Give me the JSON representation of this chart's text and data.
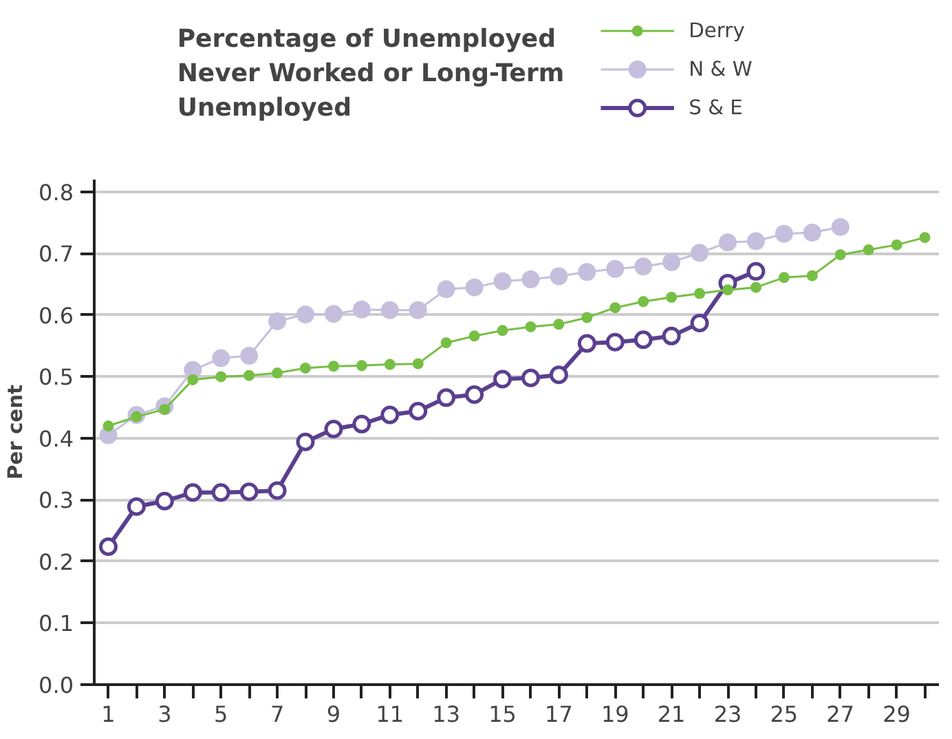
{
  "chart_data": {
    "type": "line",
    "title": "Percentage of Unemployed Never Worked or Long-Term Unemployed",
    "ylabel": "Per cent",
    "x": [
      1,
      2,
      3,
      4,
      5,
      6,
      7,
      8,
      9,
      10,
      11,
      12,
      13,
      14,
      15,
      16,
      17,
      18,
      19,
      20,
      21,
      22,
      23,
      24,
      25,
      26,
      27,
      28,
      29,
      30
    ],
    "xlim": [
      0.5,
      30.5
    ],
    "xticks": [
      1,
      {
        "value": 2,
        "label": null
      },
      3,
      {
        "value": 4,
        "label": null
      },
      5,
      {
        "value": 6,
        "label": null
      },
      7,
      {
        "value": 8,
        "label": null
      },
      9,
      {
        "value": 10,
        "label": null
      },
      11,
      {
        "value": 12,
        "label": null
      },
      13,
      {
        "value": 14,
        "label": null
      },
      15,
      {
        "value": 16,
        "label": null
      },
      17,
      {
        "value": 18,
        "label": null
      },
      19,
      {
        "value": 20,
        "label": null
      },
      21,
      {
        "value": 22,
        "label": null
      },
      23,
      {
        "value": 24,
        "label": null
      },
      25,
      {
        "value": 26,
        "label": null
      },
      27,
      {
        "value": 28,
        "label": null
      },
      29,
      {
        "value": 30,
        "label": null
      }
    ],
    "ylim": [
      0,
      0.82
    ],
    "yticks": [
      {
        "value": 0,
        "label": "0.0"
      },
      0.1,
      0.2,
      0.3,
      0.4,
      0.5,
      0.6,
      0.7,
      0.8
    ],
    "grid": "y",
    "legend": "top right",
    "marker": "circle",
    "line_style": "solid",
    "series": [
      {
        "name": "Derry",
        "color": "#76bf44",
        "values": [
          0.42,
          0.435,
          0.447,
          0.495,
          0.5,
          0.502,
          0.506,
          0.514,
          0.517,
          0.518,
          0.52,
          0.521,
          0.555,
          0.566,
          0.575,
          0.581,
          0.585,
          0.596,
          0.612,
          0.622,
          0.629,
          0.635,
          0.641,
          0.645,
          0.661,
          0.664,
          0.698,
          0.706,
          0.714,
          0.726
        ]
      },
      {
        "name": "N & W",
        "color": "#c5bfdd",
        "values": [
          0.405,
          0.438,
          0.452,
          0.511,
          0.53,
          0.534,
          0.59,
          0.601,
          0.602,
          0.609,
          0.608,
          0.608,
          0.642,
          0.645,
          0.655,
          0.658,
          0.663,
          0.67,
          0.675,
          0.679,
          0.686,
          0.701,
          0.718,
          0.72,
          0.732,
          0.734,
          0.743,
          null,
          null,
          null
        ]
      },
      {
        "name": "S & E",
        "color": "#5a3f8f",
        "marker": "open_circle",
        "values": [
          0.224,
          0.289,
          0.298,
          0.312,
          0.312,
          0.313,
          0.315,
          0.394,
          0.415,
          0.423,
          0.438,
          0.444,
          0.466,
          0.471,
          0.496,
          0.498,
          0.503,
          0.554,
          0.556,
          0.56,
          0.566,
          0.587,
          0.652,
          0.671,
          null,
          null,
          null,
          null,
          null,
          null
        ]
      }
    ]
  }
}
